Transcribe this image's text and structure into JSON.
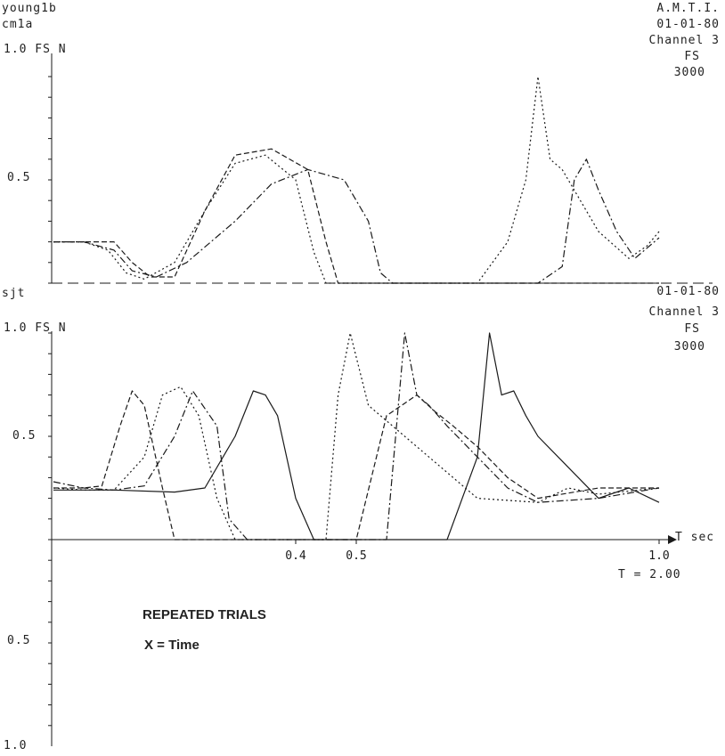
{
  "colors": {
    "ink": "#1a1a1a",
    "background": "#ffffff"
  },
  "top_panel": {
    "subject": "young1b",
    "trial": "cm1a",
    "org": "A.M.T.I.",
    "date": "01-01-80",
    "channel": "Channel 3",
    "fs_label": "FS",
    "fs_value": "3000",
    "y_axis_label": "1.0 FS N",
    "y_mid_label": "0.5"
  },
  "bottom_panel": {
    "subject": "sjt",
    "date": "01-01-80",
    "channel": "Channel 3",
    "fs_label": "FS",
    "fs_value": "3000",
    "y_axis_label": "1.0 FS N",
    "y_mid_label": "0.5",
    "x_axis_label": "T sec",
    "x_ticks": [
      "0.4",
      "0.5",
      "1.0"
    ],
    "t_label": "T = 2.00",
    "caption_1": "REPEATED TRIALS",
    "caption_2": "X = Time",
    "neg_y_mid_label": "0.5",
    "neg_y_bottom_label": "1.0"
  },
  "chart_data": [
    {
      "type": "line",
      "title": "",
      "xlabel": "T sec",
      "ylabel": "FS N",
      "xlim": [
        0,
        1.0
      ],
      "ylim": [
        0,
        1.0
      ],
      "series": [
        {
          "x": [
            0,
            0.05,
            0.1,
            0.13,
            0.16,
            0.2,
            0.25,
            0.3,
            0.36,
            0.42,
            0.45,
            0.47,
            0.5,
            0.53,
            0.56,
            0.6,
            0.64,
            0.67,
            0.7,
            0.8,
            0.82,
            0.86,
            0.9,
            0.94,
            0.96,
            0.98,
            1.0
          ],
          "y": [
            0.2,
            0.2,
            0.2,
            0.1,
            0.03,
            0.03,
            0.35,
            0.62,
            0.65,
            0.55,
            0.2,
            0,
            0,
            0,
            0,
            0,
            0,
            0,
            0,
            0,
            0,
            0,
            0,
            0,
            0,
            0,
            0
          ]
        },
        {
          "x": [
            0,
            0.05,
            0.09,
            0.12,
            0.15,
            0.2,
            0.25,
            0.3,
            0.35,
            0.4,
            0.43,
            0.45,
            0.5,
            0.6,
            0.7,
            0.75,
            0.78,
            0.8,
            0.82,
            0.84,
            0.86,
            0.9,
            0.95,
            0.98,
            1.0
          ],
          "y": [
            0.2,
            0.2,
            0.16,
            0.05,
            0.02,
            0.1,
            0.35,
            0.58,
            0.62,
            0.5,
            0.15,
            0,
            0,
            0,
            0,
            0.2,
            0.5,
            1.0,
            0.6,
            0.55,
            0.45,
            0.25,
            0.12,
            0.18,
            0.25
          ]
        },
        {
          "x": [
            0,
            0.05,
            0.1,
            0.13,
            0.17,
            0.22,
            0.3,
            0.36,
            0.42,
            0.48,
            0.52,
            0.54,
            0.56,
            0.6,
            0.7,
            0.8,
            0.84,
            0.86,
            0.88,
            0.9,
            0.93,
            0.96,
            1.0
          ],
          "y": [
            0.2,
            0.2,
            0.16,
            0.06,
            0.03,
            0.1,
            0.3,
            0.48,
            0.55,
            0.5,
            0.3,
            0.05,
            0,
            0,
            0,
            0,
            0.08,
            0.5,
            0.6,
            0.45,
            0.25,
            0.12,
            0.22
          ]
        }
      ]
    },
    {
      "type": "line",
      "title": "REPEATED TRIALS",
      "xlabel": "T sec",
      "ylabel": "FS N",
      "xlim": [
        0,
        1.0
      ],
      "ylim": [
        0,
        1.0
      ],
      "x_ticks": [
        0.4,
        0.5,
        1.0
      ],
      "series": [
        {
          "x": [
            0,
            0.05,
            0.08,
            0.11,
            0.13,
            0.15,
            0.18,
            0.2,
            0.22,
            0.3,
            0.4,
            0.45,
            0.5,
            0.55,
            0.6,
            0.63,
            0.66,
            0.7,
            0.75,
            0.8,
            0.9,
            1.0
          ],
          "y": [
            0.25,
            0.25,
            0.26,
            0.55,
            0.72,
            0.65,
            0.25,
            0,
            0,
            0,
            0,
            0,
            0,
            0.6,
            0.7,
            0.62,
            0.55,
            0.45,
            0.3,
            0.2,
            0.25,
            0.25
          ]
        },
        {
          "x": [
            0,
            0.05,
            0.1,
            0.15,
            0.18,
            0.21,
            0.24,
            0.27,
            0.3,
            0.4,
            0.45,
            0.47,
            0.49,
            0.52,
            0.56,
            0.6,
            0.64,
            0.7,
            0.8,
            0.85,
            0.9,
            1.0
          ],
          "y": [
            0.25,
            0.24,
            0.24,
            0.4,
            0.7,
            0.74,
            0.6,
            0.2,
            0,
            0,
            0,
            0.7,
            1.0,
            0.65,
            0.55,
            0.45,
            0.35,
            0.2,
            0.18,
            0.25,
            0.22,
            0.25
          ]
        },
        {
          "x": [
            0,
            0.05,
            0.1,
            0.15,
            0.2,
            0.23,
            0.27,
            0.29,
            0.32,
            0.4,
            0.5,
            0.55,
            0.58,
            0.6,
            0.62,
            0.65,
            0.7,
            0.75,
            0.8,
            0.9,
            1.0
          ],
          "y": [
            0.28,
            0.25,
            0.24,
            0.26,
            0.5,
            0.72,
            0.55,
            0.1,
            0,
            0,
            0,
            0,
            1.0,
            0.7,
            0.65,
            0.55,
            0.4,
            0.25,
            0.18,
            0.2,
            0.25
          ]
        },
        {
          "x": [
            0,
            0.1,
            0.2,
            0.25,
            0.3,
            0.33,
            0.35,
            0.37,
            0.4,
            0.43,
            0.5,
            0.6,
            0.65,
            0.7,
            0.72,
            0.74,
            0.76,
            0.78,
            0.8,
            0.85,
            0.9,
            0.95,
            1.0
          ],
          "y": [
            0.24,
            0.24,
            0.23,
            0.25,
            0.5,
            0.72,
            0.7,
            0.6,
            0.2,
            0,
            0,
            0,
            0,
            0.4,
            1.0,
            0.7,
            0.72,
            0.6,
            0.5,
            0.35,
            0.2,
            0.25,
            0.18
          ]
        }
      ]
    }
  ]
}
